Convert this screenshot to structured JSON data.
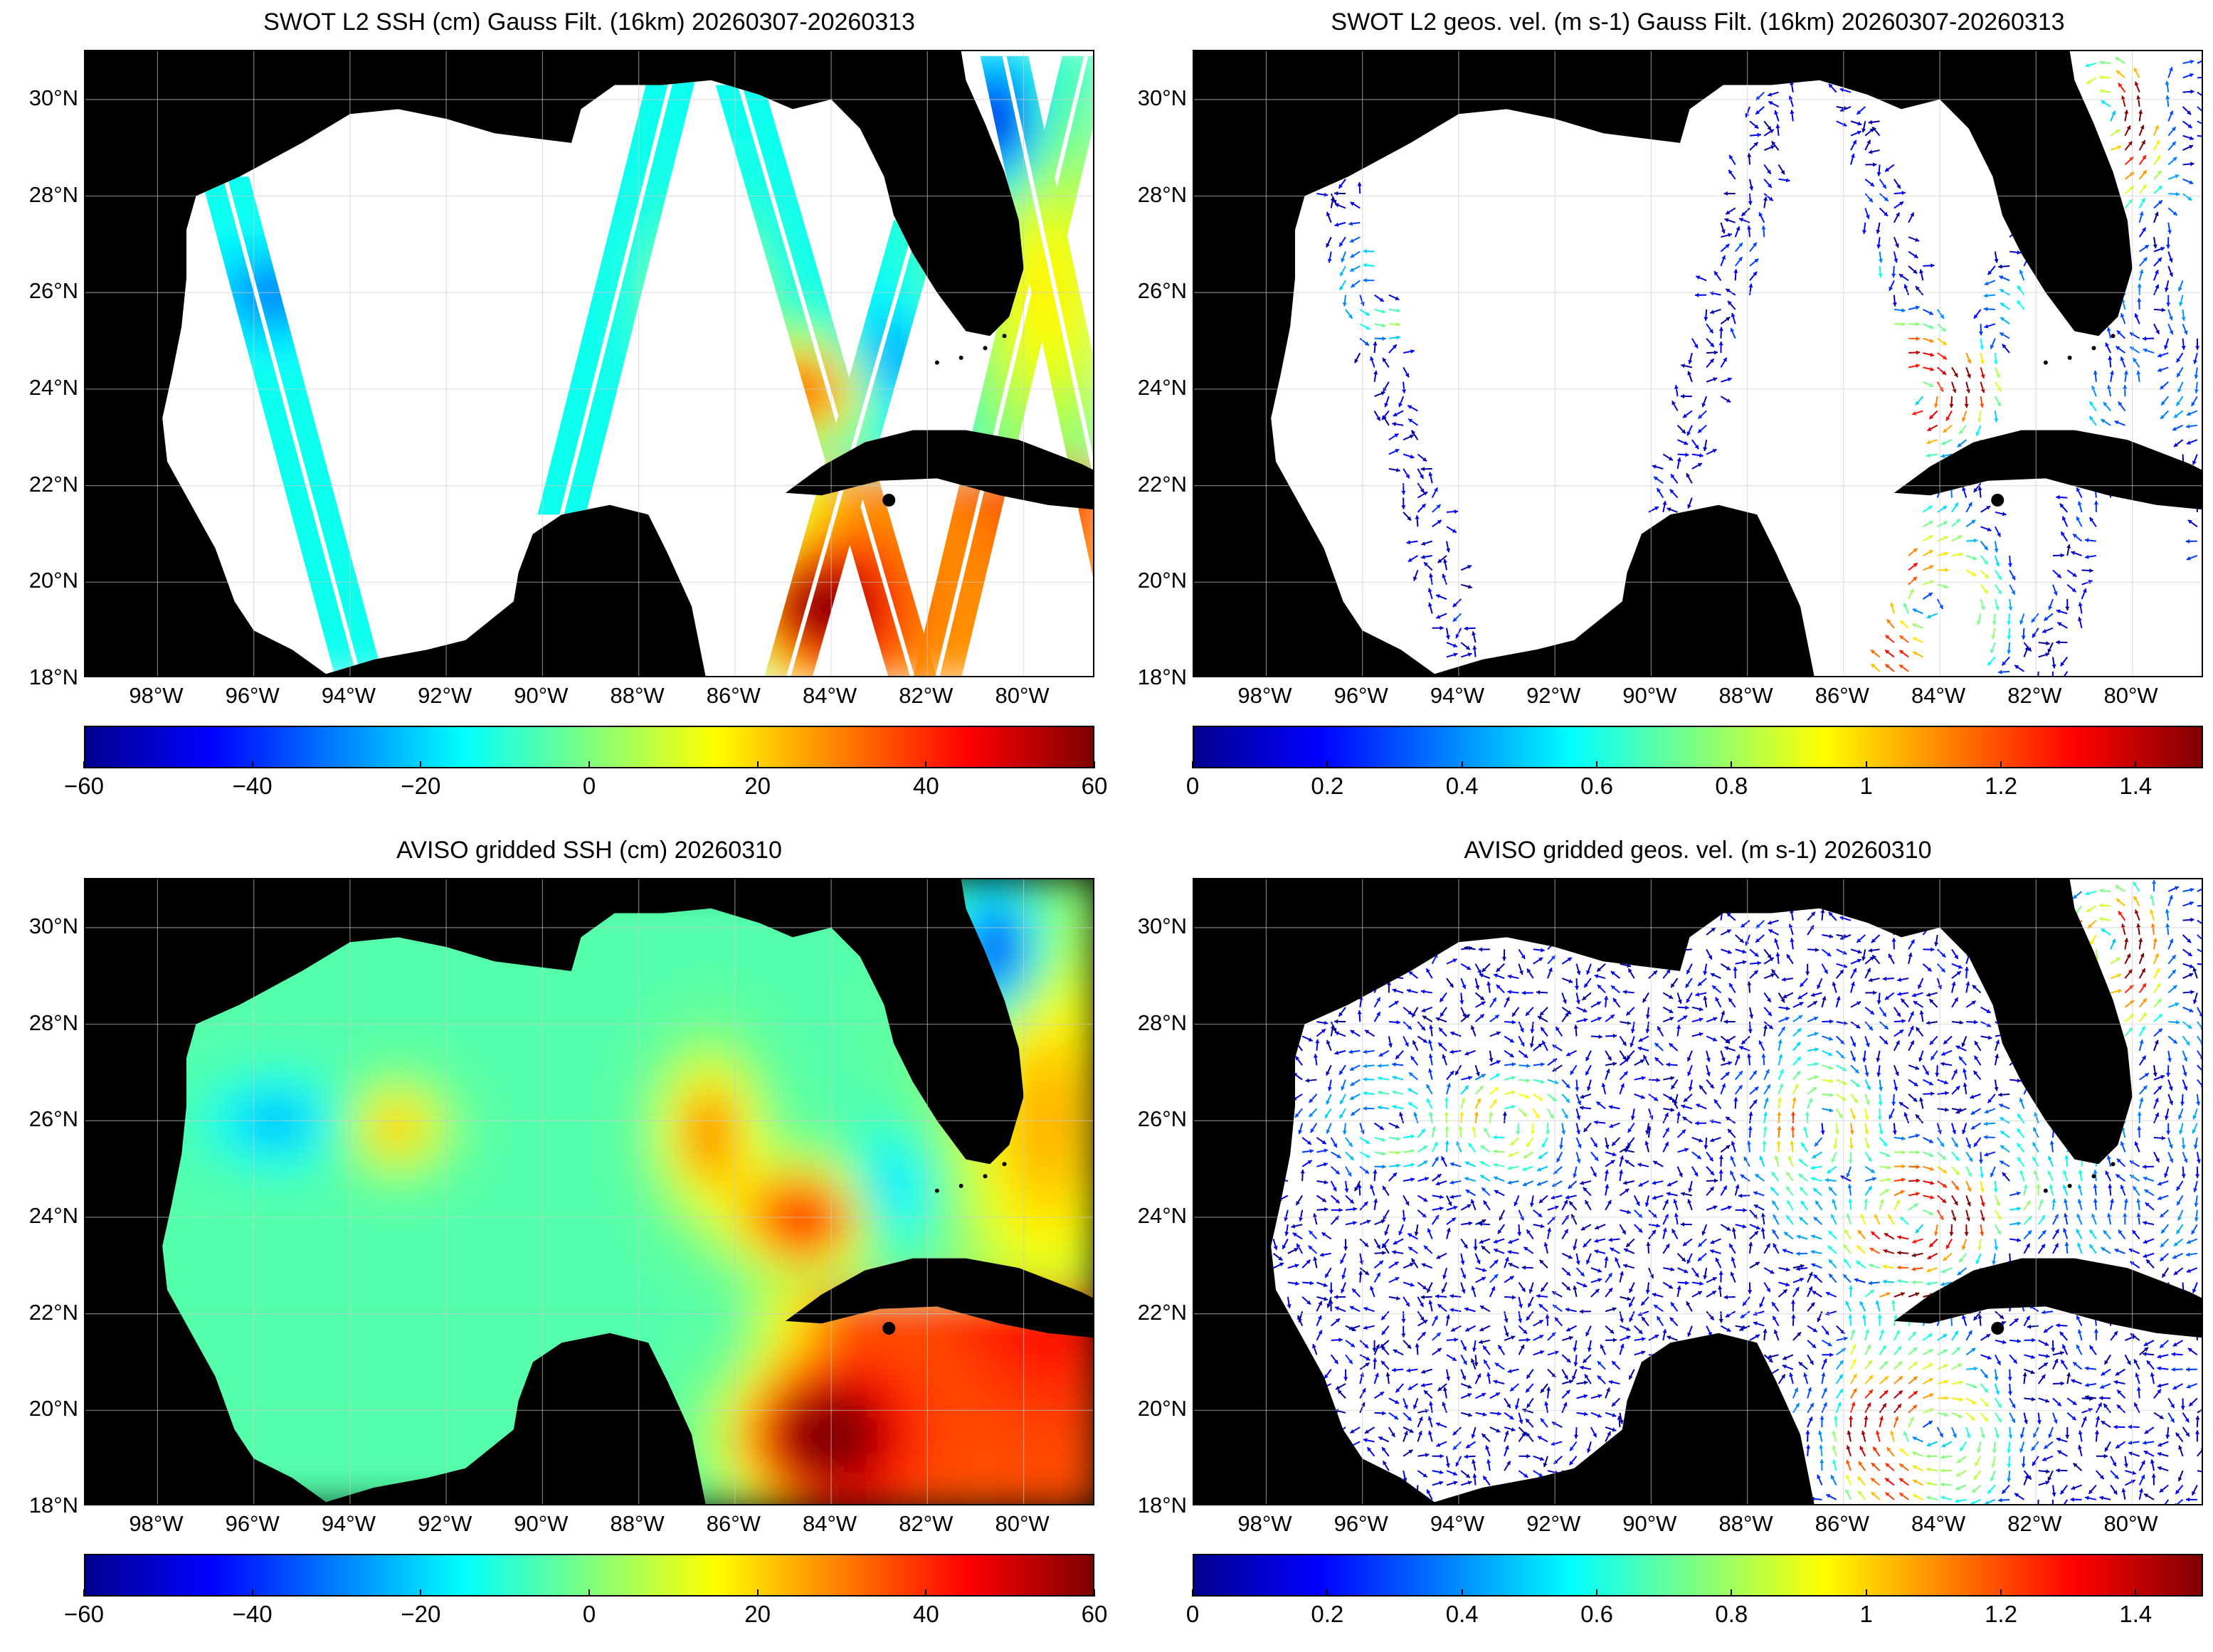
{
  "panels": [
    {
      "id": "swot-ssh",
      "title": "SWOT L2 SSH (cm) Gauss Filt. (16km) 20260307-20260313",
      "type": "ssh_swaths",
      "lat_labels": [
        "30°N",
        "28°N",
        "26°N",
        "24°N",
        "22°N",
        "20°N",
        "18°N"
      ],
      "lon_labels": [
        "98°W",
        "96°W",
        "94°W",
        "92°W",
        "90°W",
        "88°W",
        "86°W",
        "84°W",
        "82°W",
        "80°W"
      ],
      "colorbar": {
        "ticks": [
          "-60",
          "-40",
          "-20",
          "0",
          "20",
          "40",
          "60"
        ],
        "min": -60,
        "max": 60,
        "colormap": "jet"
      }
    },
    {
      "id": "swot-vel",
      "title": "SWOT L2 geos. vel. (m s-1) Gauss Filt. (16km) 20260307-20260313",
      "type": "vel_swaths",
      "lat_labels": [
        "30°N",
        "28°N",
        "26°N",
        "24°N",
        "22°N",
        "20°N",
        "18°N"
      ],
      "lon_labels": [
        "98°W",
        "96°W",
        "94°W",
        "92°W",
        "90°W",
        "88°W",
        "86°W",
        "84°W",
        "82°W",
        "80°W"
      ],
      "colorbar": {
        "ticks": [
          "0",
          "0.2",
          "0.4",
          "0.6",
          "0.8",
          "1",
          "1.2",
          "1.4"
        ],
        "min": 0,
        "max": 1.5,
        "colormap": "jet"
      }
    },
    {
      "id": "aviso-ssh",
      "title": "AVISO gridded SSH (cm) 20260310",
      "type": "ssh_grid",
      "lat_labels": [
        "30°N",
        "28°N",
        "26°N",
        "24°N",
        "22°N",
        "20°N",
        "18°N"
      ],
      "lon_labels": [
        "98°W",
        "96°W",
        "94°W",
        "92°W",
        "90°W",
        "88°W",
        "86°W",
        "84°W",
        "82°W",
        "80°W"
      ],
      "colorbar": {
        "ticks": [
          "-60",
          "-40",
          "-20",
          "0",
          "20",
          "40",
          "60"
        ],
        "min": -60,
        "max": 60,
        "colormap": "jet"
      }
    },
    {
      "id": "aviso-vel",
      "title": "AVISO gridded geos. vel. (m s-1)  20260310",
      "type": "vel_grid",
      "lat_labels": [
        "30°N",
        "28°N",
        "26°N",
        "24°N",
        "22°N",
        "20°N",
        "18°N"
      ],
      "lon_labels": [
        "98°W",
        "96°W",
        "94°W",
        "92°W",
        "90°W",
        "88°W",
        "86°W",
        "84°W",
        "82°W",
        "80°W"
      ],
      "colorbar": {
        "ticks": [
          "0",
          "0.2",
          "0.4",
          "0.6",
          "0.8",
          "1",
          "1.2",
          "1.4"
        ],
        "min": 0,
        "max": 1.5,
        "colormap": "jet"
      }
    }
  ],
  "map_extent": {
    "lon_min": -99.5,
    "lon_max": -78.5,
    "lat_min": 18,
    "lat_max": 31
  },
  "colors": {
    "land": "#000000",
    "no_data": "#ffffff",
    "grid": "#cccccc"
  }
}
